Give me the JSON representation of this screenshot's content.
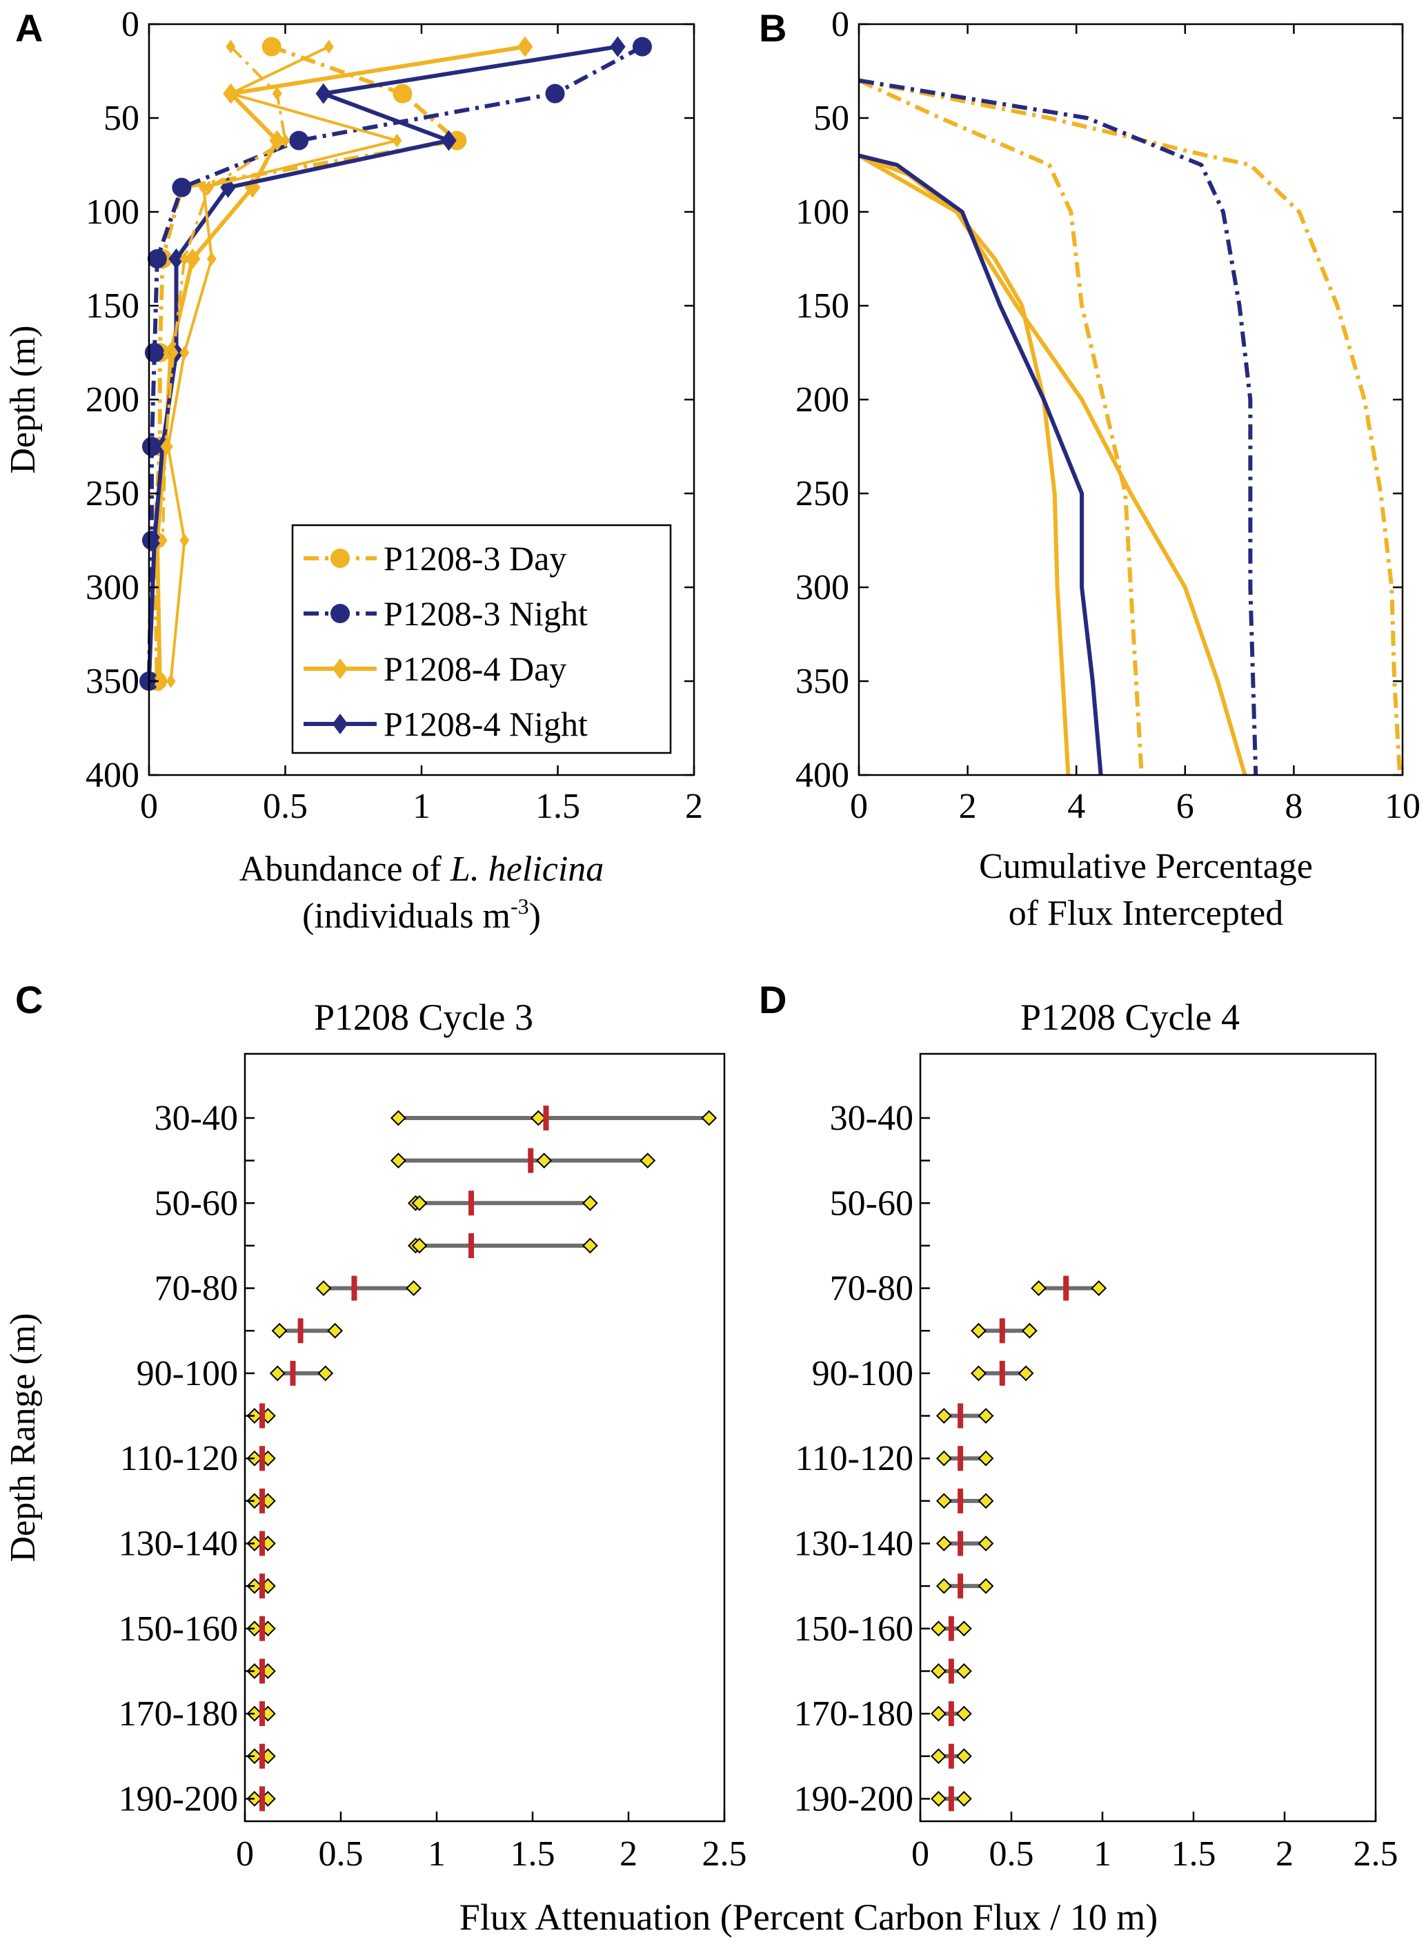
{
  "colors": {
    "day": "#F0B323",
    "night": "#262A7E",
    "median": "#C0272D",
    "range": "#6E6E6E",
    "marker_fill": "#F2E22A"
  },
  "chart_data": [
    {
      "panel": "A",
      "type": "line",
      "title": "",
      "xlabel_prefix": "Abundance of ",
      "xlabel_species": "L. helicina",
      "xlabel_line2": "(individuals m",
      "xlabel_sup": "-3",
      "xlabel_close": ")",
      "ylabel": "Depth (m)",
      "xlim": [
        0,
        2
      ],
      "ylim": [
        0,
        400
      ],
      "xticks": [
        "0",
        "0.5",
        "1",
        "1.5",
        "2"
      ],
      "yticks": [
        "0",
        "50",
        "100",
        "150",
        "200",
        "250",
        "300",
        "350",
        "400"
      ],
      "legend_position": "bottom-right",
      "series": [
        {
          "name": "P1208-3 Day",
          "color_key": "day",
          "dash": "dashdot",
          "marker": "circle",
          "points": [
            [
              0.45,
              12
            ],
            [
              0.93,
              37
            ],
            [
              1.13,
              62
            ],
            [
              0.12,
              87
            ],
            [
              0.05,
              125
            ],
            [
              0.04,
              175
            ],
            [
              0.04,
              225
            ],
            [
              0.02,
              275
            ],
            [
              0.03,
              350
            ]
          ]
        },
        {
          "name": "P1208-3 Night",
          "color_key": "night",
          "dash": "dashdot",
          "marker": "circle",
          "points": [
            [
              1.81,
              12
            ],
            [
              1.49,
              37
            ],
            [
              0.55,
              62
            ],
            [
              0.12,
              87
            ],
            [
              0.03,
              125
            ],
            [
              0.02,
              175
            ],
            [
              0.01,
              225
            ],
            [
              0.01,
              275
            ],
            [
              0.0,
              350
            ]
          ]
        },
        {
          "name": "P1208-4 Day",
          "color_key": "day",
          "dash": "solid",
          "marker": "diamond",
          "points": [
            [
              1.38,
              12
            ],
            [
              0.3,
              37
            ],
            [
              0.47,
              62
            ],
            [
              0.38,
              87
            ],
            [
              0.16,
              125
            ],
            [
              0.08,
              175
            ],
            [
              0.06,
              225
            ],
            [
              0.03,
              275
            ],
            [
              0.04,
              350
            ]
          ]
        },
        {
          "name": "P1208-4 Night",
          "color_key": "night",
          "dash": "solid",
          "marker": "diamond",
          "points": [
            [
              1.72,
              12
            ],
            [
              0.64,
              37
            ],
            [
              1.1,
              62
            ],
            [
              0.29,
              87
            ],
            [
              0.1,
              125
            ],
            [
              0.1,
              175
            ],
            [
              0.05,
              225
            ],
            [
              0.02,
              275
            ],
            [
              0.0,
              350
            ]
          ]
        },
        {
          "name": "P1208-3 Day (range)",
          "color_key": "day",
          "dash": "dashdot",
          "marker": "small-diamond",
          "in_legend": false,
          "points": [
            [
              0.3,
              12
            ],
            [
              0.47,
              37
            ],
            [
              0.5,
              62
            ],
            [
              0.22,
              87
            ],
            [
              0.13,
              125
            ],
            [
              0.09,
              175
            ],
            [
              0.06,
              225
            ],
            [
              0.05,
              275
            ]
          ]
        },
        {
          "name": "P1208-4 Day (range)",
          "color_key": "day",
          "dash": "solid",
          "marker": "small-diamond",
          "in_legend": false,
          "points": [
            [
              0.66,
              12
            ],
            [
              0.3,
              37
            ],
            [
              0.91,
              62
            ],
            [
              0.2,
              87
            ],
            [
              0.23,
              125
            ],
            [
              0.13,
              175
            ],
            [
              0.07,
              225
            ],
            [
              0.13,
              275
            ],
            [
              0.08,
              350
            ]
          ]
        }
      ]
    },
    {
      "panel": "B",
      "type": "line",
      "xlabel_line1": "Cumulative Percentage",
      "xlabel_line2": "of Flux Intercepted",
      "ylabel": "",
      "xlim": [
        0,
        10
      ],
      "ylim": [
        0,
        400
      ],
      "xticks": [
        "0",
        "2",
        "4",
        "6",
        "8",
        "10"
      ],
      "yticks": [
        "0",
        "50",
        "100",
        "150",
        "200",
        "250",
        "300",
        "350",
        "400"
      ],
      "series": [
        {
          "name": "P1208-3 Day low",
          "color_key": "day",
          "dash": "dashdot",
          "points": [
            [
              0,
              30
            ],
            [
              1.5,
              50
            ],
            [
              3.5,
              75
            ],
            [
              3.9,
              100
            ],
            [
              4.1,
              150
            ],
            [
              4.5,
              200
            ],
            [
              4.9,
              250
            ],
            [
              5.0,
              300
            ],
            [
              5.1,
              350
            ],
            [
              5.2,
              400
            ]
          ]
        },
        {
          "name": "P1208-3 Day high",
          "color_key": "day",
          "dash": "dashdot",
          "points": [
            [
              0,
              30
            ],
            [
              3.5,
              50
            ],
            [
              6.4,
              70
            ],
            [
              7.2,
              75
            ],
            [
              8.1,
              100
            ],
            [
              8.8,
              150
            ],
            [
              9.3,
              200
            ],
            [
              9.6,
              250
            ],
            [
              9.8,
              300
            ],
            [
              9.85,
              350
            ],
            [
              9.95,
              400
            ]
          ]
        },
        {
          "name": "P1208-3 Night",
          "color_key": "night",
          "dash": "dashdot",
          "points": [
            [
              0,
              30
            ],
            [
              4.2,
              50
            ],
            [
              6.3,
              75
            ],
            [
              6.7,
              100
            ],
            [
              7.0,
              150
            ],
            [
              7.2,
              200
            ],
            [
              7.2,
              250
            ],
            [
              7.2,
              300
            ],
            [
              7.25,
              350
            ],
            [
              7.3,
              400
            ]
          ]
        },
        {
          "name": "P1208-4 Day low",
          "color_key": "day",
          "dash": "solid",
          "points": [
            [
              0,
              70
            ],
            [
              0.9,
              85
            ],
            [
              1.8,
              100
            ],
            [
              2.5,
              125
            ],
            [
              3.0,
              150
            ],
            [
              3.4,
              200
            ],
            [
              3.6,
              250
            ],
            [
              3.65,
              300
            ],
            [
              3.75,
              350
            ],
            [
              3.85,
              400
            ]
          ]
        },
        {
          "name": "P1208-4 Day high",
          "color_key": "day",
          "dash": "solid",
          "points": [
            [
              0,
              70
            ],
            [
              0.9,
              80
            ],
            [
              1.8,
              100
            ],
            [
              2.9,
              150
            ],
            [
              4.1,
              200
            ],
            [
              5.0,
              250
            ],
            [
              6.0,
              300
            ],
            [
              6.6,
              350
            ],
            [
              7.1,
              400
            ]
          ]
        },
        {
          "name": "P1208-4 Night",
          "color_key": "night",
          "dash": "solid",
          "points": [
            [
              0,
              70
            ],
            [
              0.7,
              75
            ],
            [
              1.9,
              100
            ],
            [
              2.6,
              150
            ],
            [
              3.4,
              200
            ],
            [
              4.1,
              250
            ],
            [
              4.1,
              300
            ],
            [
              4.3,
              350
            ],
            [
              4.45,
              400
            ]
          ]
        }
      ]
    },
    {
      "panel": "C",
      "type": "range-dot",
      "title": "P1208 Cycle 3",
      "ylabel": "Depth Range (m)",
      "xlim": [
        0,
        2.5
      ],
      "xticks": [
        "0",
        "0.5",
        "1",
        "1.5",
        "2",
        "2.5"
      ],
      "ytick_labels": [
        "30-40",
        "50-60",
        "70-80",
        "90-100",
        "110-120",
        "130-140",
        "150-160",
        "170-180",
        "190-200"
      ],
      "rows": [
        {
          "row": 1,
          "min": 0.8,
          "max": 2.42,
          "median": 1.57,
          "mid": 1.53
        },
        {
          "row": 2,
          "min": 0.8,
          "max": 2.1,
          "median": 1.49,
          "mid": 1.56
        },
        {
          "row": 3,
          "min": 0.89,
          "max": 1.8,
          "median": 1.18,
          "mid": 0.91
        },
        {
          "row": 4,
          "min": 0.89,
          "max": 1.8,
          "median": 1.18,
          "mid": 0.91
        },
        {
          "row": 5,
          "min": 0.41,
          "max": 0.88,
          "median": 0.57
        },
        {
          "row": 6,
          "min": 0.18,
          "max": 0.47,
          "median": 0.29
        },
        {
          "row": 7,
          "min": 0.17,
          "max": 0.42,
          "median": 0.25
        },
        {
          "row": 8,
          "min": 0.05,
          "max": 0.12,
          "median": 0.09
        },
        {
          "row": 9,
          "min": 0.05,
          "max": 0.12,
          "median": 0.09
        },
        {
          "row": 10,
          "min": 0.05,
          "max": 0.12,
          "median": 0.09
        },
        {
          "row": 11,
          "min": 0.05,
          "max": 0.12,
          "median": 0.09
        },
        {
          "row": 12,
          "min": 0.05,
          "max": 0.12,
          "median": 0.09
        },
        {
          "row": 13,
          "min": 0.05,
          "max": 0.12,
          "median": 0.09
        },
        {
          "row": 14,
          "min": 0.05,
          "max": 0.12,
          "median": 0.09
        },
        {
          "row": 15,
          "min": 0.05,
          "max": 0.12,
          "median": 0.09
        },
        {
          "row": 16,
          "min": 0.05,
          "max": 0.12,
          "median": 0.09
        },
        {
          "row": 17,
          "min": 0.05,
          "max": 0.12,
          "median": 0.09
        }
      ]
    },
    {
      "panel": "D",
      "type": "range-dot",
      "title": "P1208 Cycle 4",
      "ylabel": "",
      "xlim": [
        0,
        2.5
      ],
      "xticks": [
        "0",
        "0.5",
        "1",
        "1.5",
        "2",
        "2.5"
      ],
      "ytick_labels": [
        "30-40",
        "50-60",
        "70-80",
        "90-100",
        "110-120",
        "130-140",
        "150-160",
        "170-180",
        "190-200"
      ],
      "rows": [
        {
          "row": 5,
          "min": 0.65,
          "max": 0.98,
          "median": 0.8
        },
        {
          "row": 6,
          "min": 0.32,
          "max": 0.6,
          "median": 0.45
        },
        {
          "row": 7,
          "min": 0.32,
          "max": 0.58,
          "median": 0.45
        },
        {
          "row": 8,
          "min": 0.13,
          "max": 0.36,
          "median": 0.22
        },
        {
          "row": 9,
          "min": 0.13,
          "max": 0.36,
          "median": 0.22
        },
        {
          "row": 10,
          "min": 0.13,
          "max": 0.36,
          "median": 0.22
        },
        {
          "row": 11,
          "min": 0.13,
          "max": 0.36,
          "median": 0.22
        },
        {
          "row": 12,
          "min": 0.13,
          "max": 0.36,
          "median": 0.22
        },
        {
          "row": 13,
          "min": 0.1,
          "max": 0.24,
          "median": 0.17
        },
        {
          "row": 14,
          "min": 0.1,
          "max": 0.24,
          "median": 0.17
        },
        {
          "row": 15,
          "min": 0.1,
          "max": 0.24,
          "median": 0.17
        },
        {
          "row": 16,
          "min": 0.1,
          "max": 0.24,
          "median": 0.17
        },
        {
          "row": 17,
          "min": 0.1,
          "max": 0.24,
          "median": 0.17
        }
      ]
    }
  ],
  "shared_xlabel": "Flux Attenuation (Percent Carbon Flux / 10 m)"
}
